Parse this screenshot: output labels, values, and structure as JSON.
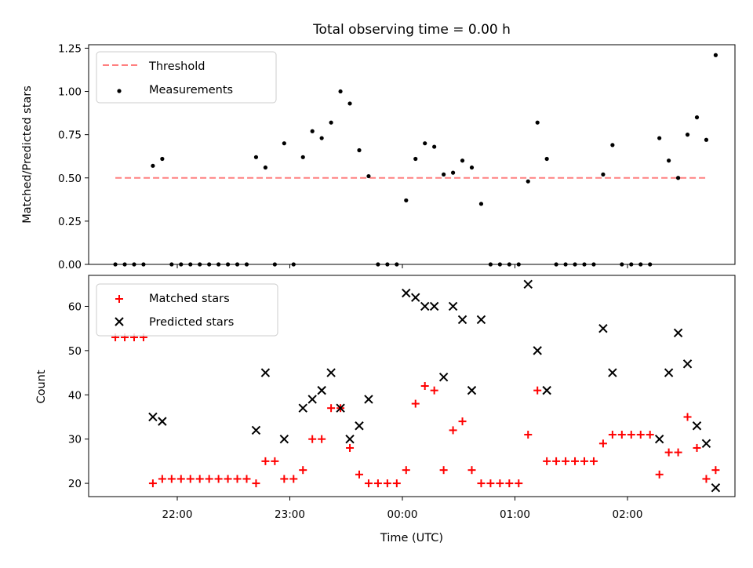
{
  "chart_data": [
    {
      "type": "scatter",
      "title": "Total observing time = 0.00 h",
      "ylabel": "Matched/Predicted stars",
      "ylim": [
        0,
        1.27
      ],
      "yticks": [
        "0.00",
        "0.25",
        "0.50",
        "0.75",
        "1.00",
        "1.25"
      ],
      "threshold": {
        "name": "Threshold",
        "value": 0.5,
        "x_range": [
          "21:27",
          "02:42"
        ],
        "color": "#ff8080"
      },
      "measurements": {
        "name": "Measurements",
        "color": "#000000",
        "points": [
          [
            "21:27",
            0.0
          ],
          [
            "21:32",
            0.0
          ],
          [
            "21:37",
            0.0
          ],
          [
            "21:42",
            0.0
          ],
          [
            "21:47",
            0.57
          ],
          [
            "21:52",
            0.61
          ],
          [
            "21:57",
            0.0
          ],
          [
            "22:02",
            0.0
          ],
          [
            "22:07",
            0.0
          ],
          [
            "22:12",
            0.0
          ],
          [
            "22:17",
            0.0
          ],
          [
            "22:22",
            0.0
          ],
          [
            "22:27",
            0.0
          ],
          [
            "22:32",
            0.0
          ],
          [
            "22:37",
            0.0
          ],
          [
            "22:42",
            0.62
          ],
          [
            "22:47",
            0.56
          ],
          [
            "22:52",
            0.0
          ],
          [
            "22:57",
            0.7
          ],
          [
            "23:02",
            0.0
          ],
          [
            "23:07",
            0.62
          ],
          [
            "23:12",
            0.77
          ],
          [
            "23:17",
            0.73
          ],
          [
            "23:22",
            0.82
          ],
          [
            "23:27",
            1.0
          ],
          [
            "23:32",
            0.93
          ],
          [
            "23:37",
            0.66
          ],
          [
            "23:42",
            0.51
          ],
          [
            "23:47",
            0.0
          ],
          [
            "23:52",
            0.0
          ],
          [
            "23:57",
            0.0
          ],
          [
            "00:02",
            0.37
          ],
          [
            "00:07",
            0.61
          ],
          [
            "00:12",
            0.7
          ],
          [
            "00:17",
            0.68
          ],
          [
            "00:22",
            0.52
          ],
          [
            "00:27",
            0.53
          ],
          [
            "00:32",
            0.6
          ],
          [
            "00:37",
            0.56
          ],
          [
            "00:42",
            0.35
          ],
          [
            "00:47",
            0.0
          ],
          [
            "00:52",
            0.0
          ],
          [
            "00:57",
            0.0
          ],
          [
            "01:02",
            0.0
          ],
          [
            "01:07",
            0.48
          ],
          [
            "01:12",
            0.82
          ],
          [
            "01:17",
            0.61
          ],
          [
            "01:22",
            0.0
          ],
          [
            "01:27",
            0.0
          ],
          [
            "01:32",
            0.0
          ],
          [
            "01:37",
            0.0
          ],
          [
            "01:42",
            0.0
          ],
          [
            "01:47",
            0.52
          ],
          [
            "01:52",
            0.69
          ],
          [
            "01:57",
            0.0
          ],
          [
            "02:02",
            0.0
          ],
          [
            "02:07",
            0.0
          ],
          [
            "02:12",
            0.0
          ],
          [
            "02:17",
            0.73
          ],
          [
            "02:22",
            0.6
          ],
          [
            "02:27",
            0.5
          ],
          [
            "02:32",
            0.75
          ],
          [
            "02:37",
            0.85
          ],
          [
            "02:42",
            0.72
          ],
          [
            "02:47",
            1.21
          ]
        ]
      },
      "legend": [
        "Threshold",
        "Measurements"
      ],
      "legend_position": "upper-left"
    },
    {
      "type": "scatter",
      "xlabel": "Time (UTC)",
      "ylabel": "Count",
      "ylim": [
        17,
        67
      ],
      "yticks": [
        "20",
        "30",
        "40",
        "50",
        "60"
      ],
      "xticks": [
        "22:00",
        "23:00",
        "00:00",
        "01:00",
        "02:00"
      ],
      "matched": {
        "name": "Matched stars",
        "color": "#ff0000",
        "points": [
          [
            "21:27",
            53
          ],
          [
            "21:32",
            53
          ],
          [
            "21:37",
            53
          ],
          [
            "21:42",
            53
          ],
          [
            "21:47",
            20
          ],
          [
            "21:52",
            21
          ],
          [
            "21:57",
            21
          ],
          [
            "22:02",
            21
          ],
          [
            "22:07",
            21
          ],
          [
            "22:12",
            21
          ],
          [
            "22:17",
            21
          ],
          [
            "22:22",
            21
          ],
          [
            "22:27",
            21
          ],
          [
            "22:32",
            21
          ],
          [
            "22:37",
            21
          ],
          [
            "22:42",
            20
          ],
          [
            "22:47",
            25
          ],
          [
            "22:52",
            25
          ],
          [
            "22:57",
            21
          ],
          [
            "23:02",
            21
          ],
          [
            "23:07",
            23
          ],
          [
            "23:12",
            30
          ],
          [
            "23:17",
            30
          ],
          [
            "23:22",
            37
          ],
          [
            "23:27",
            37
          ],
          [
            "23:32",
            28
          ],
          [
            "23:37",
            22
          ],
          [
            "23:42",
            20
          ],
          [
            "23:47",
            20
          ],
          [
            "23:52",
            20
          ],
          [
            "23:57",
            20
          ],
          [
            "00:02",
            23
          ],
          [
            "00:07",
            38
          ],
          [
            "00:12",
            42
          ],
          [
            "00:17",
            41
          ],
          [
            "00:22",
            23
          ],
          [
            "00:27",
            32
          ],
          [
            "00:32",
            34
          ],
          [
            "00:37",
            23
          ],
          [
            "00:42",
            20
          ],
          [
            "00:47",
            20
          ],
          [
            "00:52",
            20
          ],
          [
            "00:57",
            20
          ],
          [
            "01:02",
            20
          ],
          [
            "01:07",
            31
          ],
          [
            "01:12",
            41
          ],
          [
            "01:17",
            25
          ],
          [
            "01:22",
            25
          ],
          [
            "01:27",
            25
          ],
          [
            "01:32",
            25
          ],
          [
            "01:37",
            25
          ],
          [
            "01:42",
            25
          ],
          [
            "01:47",
            29
          ],
          [
            "01:52",
            31
          ],
          [
            "01:57",
            31
          ],
          [
            "02:02",
            31
          ],
          [
            "02:07",
            31
          ],
          [
            "02:12",
            31
          ],
          [
            "02:17",
            22
          ],
          [
            "02:22",
            27
          ],
          [
            "02:27",
            27
          ],
          [
            "02:32",
            35
          ],
          [
            "02:37",
            28
          ],
          [
            "02:42",
            21
          ],
          [
            "02:47",
            23
          ]
        ]
      },
      "predicted": {
        "name": "Predicted stars",
        "color": "#000000",
        "points": [
          [
            "21:47",
            35
          ],
          [
            "21:52",
            34
          ],
          [
            "22:42",
            32
          ],
          [
            "22:47",
            45
          ],
          [
            "22:57",
            30
          ],
          [
            "23:07",
            37
          ],
          [
            "23:12",
            39
          ],
          [
            "23:17",
            41
          ],
          [
            "23:22",
            45
          ],
          [
            "23:27",
            37
          ],
          [
            "23:32",
            30
          ],
          [
            "23:37",
            33
          ],
          [
            "23:42",
            39
          ],
          [
            "00:02",
            63
          ],
          [
            "00:07",
            62
          ],
          [
            "00:12",
            60
          ],
          [
            "00:17",
            60
          ],
          [
            "00:22",
            44
          ],
          [
            "00:27",
            60
          ],
          [
            "00:32",
            57
          ],
          [
            "00:37",
            41
          ],
          [
            "00:42",
            57
          ],
          [
            "01:07",
            65
          ],
          [
            "01:12",
            50
          ],
          [
            "01:17",
            41
          ],
          [
            "01:47",
            55
          ],
          [
            "01:52",
            45
          ],
          [
            "02:17",
            30
          ],
          [
            "02:22",
            45
          ],
          [
            "02:27",
            54
          ],
          [
            "02:32",
            47
          ],
          [
            "02:37",
            33
          ],
          [
            "02:42",
            29
          ],
          [
            "02:47",
            19
          ]
        ]
      },
      "legend": [
        "Matched stars",
        "Predicted stars"
      ],
      "legend_position": "upper-left"
    }
  ]
}
